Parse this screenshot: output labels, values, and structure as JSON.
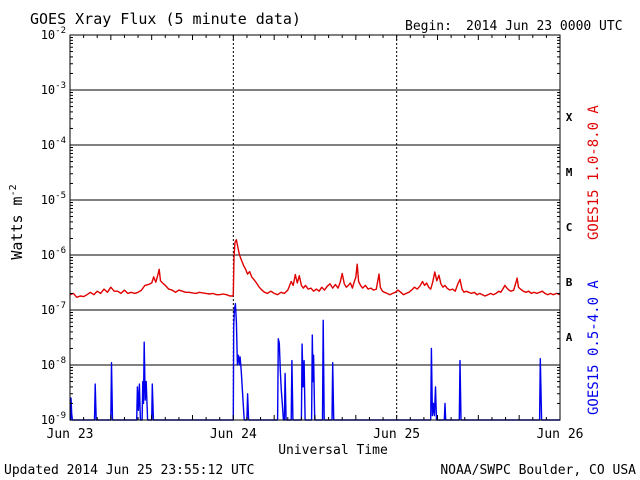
{
  "header": {
    "title": "GOES Xray Flux (5 minute data)",
    "begin_label": "Begin:",
    "begin_value": "2014 Jun 23 0000 UTC"
  },
  "footer": {
    "updated": "Updated 2014 Jun 25 23:55:12 UTC",
    "credit": "NOAA/SWPC Boulder, CO USA"
  },
  "colors": {
    "long_channel": "#e00000",
    "short_channel": "#0000ee",
    "grid": "#000000"
  },
  "chart_data": {
    "type": "line",
    "title": "GOES Xray Flux (5 minute data)",
    "xlabel": "Universal Time",
    "ylabel": "Watts m",
    "ylabel_exponent": "-2",
    "x_unit": "hours since 2014 Jun 23 0000 UTC",
    "xlim": [
      0,
      72
    ],
    "ylim": [
      1e-09,
      0.01
    ],
    "yscale": "log",
    "grid": true,
    "x_ticks": [
      {
        "x": 0,
        "label": "Jun 23"
      },
      {
        "x": 24,
        "label": "Jun 24"
      },
      {
        "x": 48,
        "label": "Jun 25"
      },
      {
        "x": 72,
        "label": "Jun 26"
      }
    ],
    "y_ticks": [
      {
        "value": 1e-09,
        "base": "10",
        "exp": "-9"
      },
      {
        "value": 1e-08,
        "base": "10",
        "exp": "-8"
      },
      {
        "value": 1e-07,
        "base": "10",
        "exp": "-7"
      },
      {
        "value": 1e-06,
        "base": "10",
        "exp": "-6"
      },
      {
        "value": 1e-05,
        "base": "10",
        "exp": "-5"
      },
      {
        "value": 0.0001,
        "base": "10",
        "exp": "-4"
      },
      {
        "value": 0.001,
        "base": "10",
        "exp": "-3"
      },
      {
        "value": 0.01,
        "base": "10",
        "exp": "-2"
      }
    ],
    "flare_classes": [
      {
        "label": "X",
        "value": 0.00032
      },
      {
        "label": "M",
        "value": 3.2e-05
      },
      {
        "label": "C",
        "value": 3.2e-06
      },
      {
        "label": "B",
        "value": 3.2e-07
      },
      {
        "label": "A",
        "value": 3.2e-08
      }
    ],
    "series": [
      {
        "name": "GOES15 1.0-8.0 A",
        "color": "#e00000",
        "points": [
          [
            0,
            1.9e-07
          ],
          [
            0.5,
            2e-07
          ],
          [
            1,
            1.7e-07
          ],
          [
            1.5,
            1.8e-07
          ],
          [
            2,
            1.75e-07
          ],
          [
            2.5,
            1.9e-07
          ],
          [
            3,
            2.1e-07
          ],
          [
            3.5,
            1.9e-07
          ],
          [
            4,
            2.2e-07
          ],
          [
            4.5,
            2e-07
          ],
          [
            5,
            2.4e-07
          ],
          [
            5.5,
            2.1e-07
          ],
          [
            6,
            2.6e-07
          ],
          [
            6.5,
            2.2e-07
          ],
          [
            7,
            2.2e-07
          ],
          [
            7.5,
            2e-07
          ],
          [
            8,
            2.3e-07
          ],
          [
            8.5,
            2e-07
          ],
          [
            9,
            2.1e-07
          ],
          [
            9.5,
            2e-07
          ],
          [
            10,
            2.1e-07
          ],
          [
            10.5,
            2.3e-07
          ],
          [
            11,
            2.8e-07
          ],
          [
            11.5,
            2.9e-07
          ],
          [
            12,
            3.1e-07
          ],
          [
            12.3,
            4e-07
          ],
          [
            12.6,
            3.2e-07
          ],
          [
            12.9,
            4.3e-07
          ],
          [
            13.1,
            5.5e-07
          ],
          [
            13.3,
            3.4e-07
          ],
          [
            13.6,
            3.1e-07
          ],
          [
            14,
            2.8e-07
          ],
          [
            14.5,
            2.4e-07
          ],
          [
            15,
            2.3e-07
          ],
          [
            15.5,
            2.1e-07
          ],
          [
            16,
            2.3e-07
          ],
          [
            16.5,
            2.2e-07
          ],
          [
            17,
            2.1e-07
          ],
          [
            17.5,
            2.1e-07
          ],
          [
            18,
            2.05e-07
          ],
          [
            18.5,
            2e-07
          ],
          [
            19,
            2.1e-07
          ],
          [
            19.5,
            2.05e-07
          ],
          [
            20,
            2e-07
          ],
          [
            20.5,
            1.95e-07
          ],
          [
            21,
            2e-07
          ],
          [
            21.5,
            1.9e-07
          ],
          [
            22,
            1.9e-07
          ],
          [
            22.5,
            1.95e-07
          ],
          [
            23,
            1.9e-07
          ],
          [
            23.5,
            1.8e-07
          ],
          [
            23.9,
            1.8e-07
          ],
          [
            24.0,
            1.9e-07
          ],
          [
            24.1,
            9e-07
          ],
          [
            24.25,
            1.7e-06
          ],
          [
            24.45,
            1.9e-06
          ],
          [
            24.65,
            1.4e-06
          ],
          [
            24.9,
            1e-06
          ],
          [
            25.2,
            8e-07
          ],
          [
            25.5,
            6.5e-07
          ],
          [
            25.8,
            5.5e-07
          ],
          [
            26.1,
            4.5e-07
          ],
          [
            26.4,
            5e-07
          ],
          [
            26.7,
            4e-07
          ],
          [
            27.0,
            3.6e-07
          ],
          [
            27.4,
            3.1e-07
          ],
          [
            27.8,
            2.6e-07
          ],
          [
            28.2,
            2.3e-07
          ],
          [
            28.6,
            2.1e-07
          ],
          [
            29,
            2e-07
          ],
          [
            29.5,
            2.2e-07
          ],
          [
            30,
            2e-07
          ],
          [
            30.5,
            1.9e-07
          ],
          [
            31,
            2.1e-07
          ],
          [
            31.5,
            2e-07
          ],
          [
            32,
            2.3e-07
          ],
          [
            32.5,
            3.3e-07
          ],
          [
            32.8,
            2.8e-07
          ],
          [
            33.1,
            4.4e-07
          ],
          [
            33.4,
            3.1e-07
          ],
          [
            33.7,
            4.2e-07
          ],
          [
            34.0,
            2.8e-07
          ],
          [
            34.3,
            2.5e-07
          ],
          [
            34.6,
            2.8e-07
          ],
          [
            35.0,
            2.4e-07
          ],
          [
            35.4,
            2.5e-07
          ],
          [
            35.8,
            2.2e-07
          ],
          [
            36.2,
            2.4e-07
          ],
          [
            36.6,
            2.2e-07
          ],
          [
            37.0,
            2.6e-07
          ],
          [
            37.4,
            2.3e-07
          ],
          [
            37.8,
            2.7e-07
          ],
          [
            38.2,
            3e-07
          ],
          [
            38.6,
            2.5e-07
          ],
          [
            39.0,
            2.9e-07
          ],
          [
            39.4,
            2.5e-07
          ],
          [
            39.7,
            3.2e-07
          ],
          [
            40.0,
            4.6e-07
          ],
          [
            40.3,
            3e-07
          ],
          [
            40.6,
            2.6e-07
          ],
          [
            40.9,
            2.8e-07
          ],
          [
            41.2,
            3.1e-07
          ],
          [
            41.5,
            2.5e-07
          ],
          [
            41.8,
            3.4e-07
          ],
          [
            42.0,
            3.9e-07
          ],
          [
            42.2,
            6.8e-07
          ],
          [
            42.4,
            3.3e-07
          ],
          [
            42.7,
            2.8e-07
          ],
          [
            43.0,
            2.5e-07
          ],
          [
            43.4,
            2.8e-07
          ],
          [
            43.8,
            2.4e-07
          ],
          [
            44.2,
            2.5e-07
          ],
          [
            44.6,
            2.3e-07
          ],
          [
            45.0,
            2.4e-07
          ],
          [
            45.4,
            4.5e-07
          ],
          [
            45.6,
            2.6e-07
          ],
          [
            45.9,
            2.2e-07
          ],
          [
            46.2,
            2.1e-07
          ],
          [
            46.6,
            2e-07
          ],
          [
            47.0,
            1.9e-07
          ],
          [
            47.4,
            2e-07
          ],
          [
            47.8,
            2.1e-07
          ],
          [
            48.2,
            2.3e-07
          ],
          [
            48.6,
            2.1e-07
          ],
          [
            49.0,
            1.9e-07
          ],
          [
            49.4,
            2e-07
          ],
          [
            49.8,
            2.1e-07
          ],
          [
            50.2,
            2.3e-07
          ],
          [
            50.6,
            2.6e-07
          ],
          [
            51.0,
            2.4e-07
          ],
          [
            51.4,
            2.7e-07
          ],
          [
            51.8,
            3.3e-07
          ],
          [
            52.1,
            2.8e-07
          ],
          [
            52.4,
            3.1e-07
          ],
          [
            52.7,
            2.6e-07
          ],
          [
            53.0,
            2.4e-07
          ],
          [
            53.3,
            3.2e-07
          ],
          [
            53.6,
            4.9e-07
          ],
          [
            53.9,
            3.4e-07
          ],
          [
            54.2,
            4.3e-07
          ],
          [
            54.5,
            3e-07
          ],
          [
            54.8,
            2.6e-07
          ],
          [
            55.1,
            2.8e-07
          ],
          [
            55.4,
            2.5e-07
          ],
          [
            55.8,
            2.3e-07
          ],
          [
            56.2,
            2.4e-07
          ],
          [
            56.6,
            2.2e-07
          ],
          [
            57.0,
            3e-07
          ],
          [
            57.3,
            3.6e-07
          ],
          [
            57.6,
            2.4e-07
          ],
          [
            57.9,
            2.1e-07
          ],
          [
            58.2,
            2.2e-07
          ],
          [
            58.6,
            2.1e-07
          ],
          [
            59.0,
            2e-07
          ],
          [
            59.4,
            2.1e-07
          ],
          [
            59.8,
            1.9e-07
          ],
          [
            60.2,
            2e-07
          ],
          [
            60.6,
            1.9e-07
          ],
          [
            61.0,
            1.8e-07
          ],
          [
            61.4,
            1.9e-07
          ],
          [
            61.8,
            2e-07
          ],
          [
            62.2,
            1.9e-07
          ],
          [
            62.6,
            2e-07
          ],
          [
            63.0,
            2.2e-07
          ],
          [
            63.3,
            2.1e-07
          ],
          [
            63.6,
            2.4e-07
          ],
          [
            63.9,
            2.8e-07
          ],
          [
            64.2,
            2.5e-07
          ],
          [
            64.5,
            2.3e-07
          ],
          [
            64.8,
            2.2e-07
          ],
          [
            65.2,
            2.3e-07
          ],
          [
            65.5,
            3.1e-07
          ],
          [
            65.7,
            3.8e-07
          ],
          [
            65.9,
            2.6e-07
          ],
          [
            66.2,
            2.4e-07
          ],
          [
            66.6,
            2.2e-07
          ],
          [
            67.0,
            2.1e-07
          ],
          [
            67.4,
            2.2e-07
          ],
          [
            67.8,
            2e-07
          ],
          [
            68.2,
            2.1e-07
          ],
          [
            68.6,
            2e-07
          ],
          [
            69.0,
            2.1e-07
          ],
          [
            69.4,
            2.2e-07
          ],
          [
            69.8,
            2e-07
          ],
          [
            70.2,
            1.9e-07
          ],
          [
            70.6,
            2e-07
          ],
          [
            71.0,
            1.9e-07
          ],
          [
            71.5,
            2e-07
          ],
          [
            72.0,
            1.9e-07
          ]
        ]
      },
      {
        "name": "GOES15 0.5-4.0 A",
        "color": "#0000ee",
        "baseline": 1e-09,
        "points": [
          [
            0,
            1e-09
          ],
          [
            0.1,
            1e-09
          ],
          [
            0.15,
            2.5e-09
          ],
          [
            0.25,
            1.3e-09
          ],
          [
            0.35,
            1e-09
          ],
          [
            3.6,
            1e-09
          ],
          [
            3.7,
            4.5e-09
          ],
          [
            3.85,
            1e-09
          ],
          [
            6.0,
            1e-09
          ],
          [
            6.1,
            1.1e-08
          ],
          [
            6.25,
            1e-09
          ],
          [
            9.8,
            1e-09
          ],
          [
            9.9,
            4e-09
          ],
          [
            10.05,
            1.5e-09
          ],
          [
            10.2,
            4.5e-09
          ],
          [
            10.35,
            1e-09
          ],
          [
            10.6,
            1e-09
          ],
          [
            10.7,
            5e-09
          ],
          [
            10.8,
            2e-09
          ],
          [
            10.9,
            2.6e-08
          ],
          [
            11.05,
            2.3e-09
          ],
          [
            11.2,
            5e-09
          ],
          [
            11.4,
            1e-09
          ],
          [
            12.0,
            1e-09
          ],
          [
            12.1,
            4.5e-09
          ],
          [
            12.25,
            1e-09
          ],
          [
            24.0,
            1e-09
          ],
          [
            24.05,
            5e-08
          ],
          [
            24.15,
            1e-07
          ],
          [
            24.3,
            1.3e-07
          ],
          [
            24.45,
            6e-08
          ],
          [
            24.6,
            1e-08
          ],
          [
            24.75,
            1.5e-08
          ],
          [
            24.9,
            1e-08
          ],
          [
            25.0,
            1.4e-08
          ],
          [
            25.15,
            8e-09
          ],
          [
            25.3,
            4e-09
          ],
          [
            25.45,
            2e-09
          ],
          [
            25.6,
            1e-09
          ],
          [
            26.0,
            1e-09
          ],
          [
            26.1,
            3e-09
          ],
          [
            26.25,
            1e-09
          ],
          [
            30.5,
            1e-09
          ],
          [
            30.6,
            3e-08
          ],
          [
            30.75,
            2.5e-08
          ],
          [
            30.9,
            8e-09
          ],
          [
            31.05,
            3.5e-09
          ],
          [
            31.2,
            2e-09
          ],
          [
            31.35,
            1e-09
          ],
          [
            31.5,
            1e-09
          ],
          [
            31.6,
            7e-09
          ],
          [
            31.75,
            1e-09
          ],
          [
            32.5,
            1e-09
          ],
          [
            32.6,
            1.2e-08
          ],
          [
            32.75,
            1e-09
          ],
          [
            34.0,
            1e-09
          ],
          [
            34.1,
            2.4e-08
          ],
          [
            34.25,
            4e-09
          ],
          [
            34.4,
            1.2e-08
          ],
          [
            34.55,
            1e-09
          ],
          [
            35.5,
            1e-09
          ],
          [
            35.6,
            3.5e-08
          ],
          [
            35.7,
            5e-09
          ],
          [
            35.8,
            1.5e-08
          ],
          [
            35.95,
            1e-09
          ],
          [
            37.1,
            1e-09
          ],
          [
            37.2,
            6.5e-08
          ],
          [
            37.35,
            1e-09
          ],
          [
            38.5,
            1e-09
          ],
          [
            38.6,
            1.1e-08
          ],
          [
            38.75,
            1e-09
          ],
          [
            53.0,
            1e-09
          ],
          [
            53.1,
            2e-08
          ],
          [
            53.25,
            1.2e-09
          ],
          [
            53.4,
            2e-09
          ],
          [
            53.55,
            1.2e-09
          ],
          [
            53.7,
            4e-09
          ],
          [
            53.85,
            1e-09
          ],
          [
            55.0,
            1e-09
          ],
          [
            55.1,
            2e-09
          ],
          [
            55.2,
            1e-09
          ],
          [
            57.2,
            1e-09
          ],
          [
            57.3,
            1.2e-08
          ],
          [
            57.45,
            1e-09
          ],
          [
            69.0,
            1e-09
          ],
          [
            69.1,
            1.3e-08
          ],
          [
            69.3,
            1e-09
          ],
          [
            72.0,
            1e-09
          ]
        ]
      }
    ]
  }
}
